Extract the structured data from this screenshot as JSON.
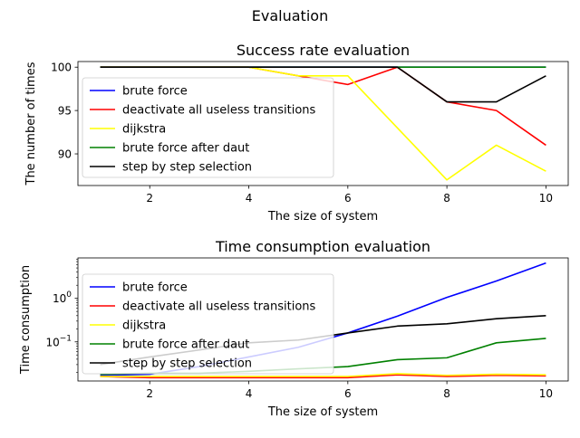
{
  "figure": {
    "suptitle": "Evaluation"
  },
  "chart_data": [
    {
      "type": "line",
      "title": "Success rate evaluation",
      "xlabel": "The size of system",
      "ylabel": "The number of times",
      "xlim": [
        0.55,
        10.45
      ],
      "ylim": [
        86.35,
        100.65
      ],
      "yscale": "linear",
      "xticks": [
        2,
        4,
        6,
        8,
        10
      ],
      "xtick_labels": [
        "2",
        "4",
        "6",
        "8",
        "10"
      ],
      "yticks": [
        90,
        95,
        100
      ],
      "ytick_labels": [
        "90",
        "95",
        "100"
      ],
      "legend": "upper-left",
      "grid": false,
      "x": [
        1,
        2,
        3,
        4,
        5,
        6,
        7,
        8,
        9,
        10
      ],
      "series": [
        {
          "name": "brute force",
          "color": "#0000ff",
          "values": [
            100,
            100,
            100,
            100,
            100,
            100,
            100,
            100,
            100,
            100
          ]
        },
        {
          "name": "deactivate all useless transitions",
          "color": "#ff0000",
          "values": [
            100,
            100,
            100,
            100,
            99,
            98,
            100,
            96,
            95,
            91
          ]
        },
        {
          "name": "dijkstra",
          "color": "#ffff00",
          "values": [
            100,
            100,
            100,
            100,
            99,
            99,
            93,
            87,
            91,
            88
          ]
        },
        {
          "name": "brute force after daut",
          "color": "#008000",
          "values": [
            100,
            100,
            100,
            100,
            100,
            100,
            100,
            100,
            100,
            100
          ]
        },
        {
          "name": "step by step selection",
          "color": "#000000",
          "values": [
            100,
            100,
            100,
            100,
            100,
            100,
            100,
            96,
            96,
            99
          ]
        }
      ]
    },
    {
      "type": "line",
      "title": "Time consumption evaluation",
      "xlabel": "The size of system",
      "ylabel": "Time consumption",
      "xlim": [
        0.55,
        10.45
      ],
      "ylim": [
        0.0126,
        8.5
      ],
      "yscale": "log",
      "xticks": [
        2,
        4,
        6,
        8,
        10
      ],
      "xtick_labels": [
        "2",
        "4",
        "6",
        "8",
        "10"
      ],
      "yticks": [
        0.1,
        1
      ],
      "ytick_labels_base": [
        "10",
        "10"
      ],
      "ytick_labels_exp": [
        "−1",
        "0"
      ],
      "legend": "upper-left",
      "grid": false,
      "x": [
        1,
        2,
        3,
        4,
        5,
        6,
        7,
        8,
        9,
        10
      ],
      "series": [
        {
          "name": "brute force",
          "color": "#0000ff",
          "values": [
            0.017,
            0.018,
            0.027,
            0.045,
            0.075,
            0.16,
            0.39,
            1.05,
            2.5,
            6.5
          ]
        },
        {
          "name": "deactivate all useless transitions",
          "color": "#ff0000",
          "values": [
            0.016,
            0.015,
            0.015,
            0.015,
            0.015,
            0.015,
            0.0175,
            0.016,
            0.017,
            0.0165
          ]
        },
        {
          "name": "dijkstra",
          "color": "#ffff00",
          "values": [
            0.016,
            0.016,
            0.016,
            0.016,
            0.016,
            0.016,
            0.0185,
            0.017,
            0.018,
            0.0175
          ]
        },
        {
          "name": "brute force after daut",
          "color": "#008000",
          "values": [
            0.018,
            0.019,
            0.019,
            0.021,
            0.024,
            0.027,
            0.039,
            0.043,
            0.095,
            0.12
          ]
        },
        {
          "name": "step by step selection",
          "color": "#000000",
          "values": [
            0.03,
            0.045,
            0.065,
            0.095,
            0.11,
            0.16,
            0.23,
            0.26,
            0.34,
            0.4
          ]
        }
      ]
    }
  ]
}
